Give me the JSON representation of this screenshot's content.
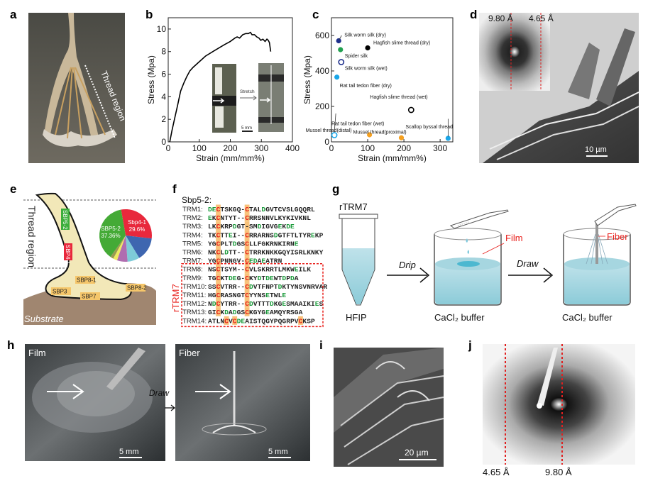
{
  "panel_labels": [
    "a",
    "b",
    "c",
    "d",
    "e",
    "f",
    "g",
    "h",
    "i",
    "j"
  ],
  "panel_a": {
    "thread_region_label": "Thread region"
  },
  "panel_b_inset": {
    "stretch_label": "Stretch",
    "scale_label": "5 mm"
  },
  "panel_d": {
    "label_left": "9.80 Å",
    "label_right": "4.65 Å",
    "scale_label": "10 µm",
    "line_color": "#e02020"
  },
  "panel_e": {
    "thread_region_label": "Thread region",
    "substrate_label": "Substrate",
    "protein_tags": [
      {
        "label": "SBP5-2",
        "color": "#3cae3c"
      },
      {
        "label": "SBP4-1",
        "color": "#e8283c"
      },
      {
        "label": "SBP8-1",
        "color": "#f5c66a"
      },
      {
        "label": "SBP8-2",
        "color": "#f5c66a"
      },
      {
        "label": "SBP3",
        "color": "#f5c66a"
      },
      {
        "label": "SBP7",
        "color": "#f5c66a"
      }
    ],
    "pie": [
      {
        "label": "Sbp4-1",
        "value_label": "29.6%",
        "value": 29.6,
        "color": "#e8283c"
      },
      {
        "label": "",
        "value": 14.5,
        "color": "#3e66b0"
      },
      {
        "label": "",
        "value": 7.5,
        "color": "#7ecbd8"
      },
      {
        "label": "",
        "value": 6.5,
        "color": "#b06db0"
      },
      {
        "label": "",
        "value": 2.5,
        "color": "#eeea60"
      },
      {
        "label": "",
        "value": 2.04,
        "color": "#9a9a50"
      },
      {
        "label": "SBP5-2",
        "value_label": "37.36%",
        "value": 37.36,
        "color": "#44aa36"
      }
    ]
  },
  "panel_f": {
    "title": "Sbp5-2:",
    "group_label": "rTRM7",
    "rows": [
      {
        "name": "TRM1:",
        "seq": "DECTSKGQ-CTALDGVTCVSLGQQRL",
        "hl": [
          2,
          9
        ]
      },
      {
        "name": "TRM2:",
        "seq": "EKCNTYT--CRRSNNVLKYKIVKNL",
        "hl": [
          2,
          9
        ]
      },
      {
        "name": "TRM3:",
        "seq": "LKCKRPDGT-SMDIGVGEKDE",
        "hl": [
          2,
          9
        ]
      },
      {
        "name": "TRM4:",
        "seq": "TKCTTEI--CRRARNSDGTFTLTYREKP",
        "hl": [
          2,
          9
        ]
      },
      {
        "name": "TRM5:",
        "seq": "YGCPLTDGSCLLFGKRNKIRNE",
        "hl": [
          2,
          9
        ]
      },
      {
        "name": "TRM6:",
        "seq": "NKCLDTT--CTRRKNKKGQYISRLKNKY",
        "hl": [
          2,
          9
        ]
      },
      {
        "name": "TRM7:",
        "seq": "YGCPNNGV-CEDAEATRN",
        "hl": [
          2,
          9
        ]
      },
      {
        "name": "TRM8:",
        "seq": "NSCTSYM--CVLSKRRTLMKWEILK",
        "hl": [
          2,
          9
        ]
      },
      {
        "name": "TRM9:",
        "seq": "TGCKTDEG-CKYDTDEWTDPDA",
        "hl": [
          2,
          9
        ]
      },
      {
        "name": "TRM10:",
        "seq": "SSCVTRR--CDVTFNPTDKTYNSVNRVAR",
        "hl": [
          2,
          9
        ]
      },
      {
        "name": "TRM11:",
        "seq": "HGCRASNGTCYYNSETWLE",
        "hl": [
          2,
          9
        ]
      },
      {
        "name": "TRM12:",
        "seq": "NDCYTRR--CDVTTTDKGESMAAIKIES",
        "hl": [
          2,
          9
        ]
      },
      {
        "name": "TRM13:",
        "seq": "GICKDADGSCKGYGEAMQYRSGA",
        "hl": [
          2,
          9
        ]
      },
      {
        "name": "TRM14:",
        "seq": "ATLNCVCDEAISTQGYPQGRPVCKSP",
        "hl": [
          4,
          6,
          22
        ]
      }
    ],
    "colors": {
      "cysteine": "#e8201c",
      "acidic": "#1a9a3a",
      "highlight": "#f8c27a",
      "box": "#e8201c"
    }
  },
  "panel_g": {
    "tube_label": "rTRM7",
    "solvent_label": "HFIP",
    "step1": "Drip",
    "step2": "Draw",
    "film_label": "Film",
    "fiber_label": "Fiber",
    "buffer1": "CaCl₂ buffer",
    "buffer2": "CaCl₂ buffer"
  },
  "panel_h": {
    "left_label": "Film",
    "right_label": "Fiber",
    "arrow_label": "Draw",
    "scale_left": "5 mm",
    "scale_right": "5 mm"
  },
  "panel_i": {
    "scale_label": "20 µm"
  },
  "panel_j": {
    "label_left": "4.65 Å",
    "label_right": "9.80 Å"
  },
  "chart_data": [
    {
      "type": "line",
      "xlabel": "Strain (mm/mm%)",
      "ylabel": "Stress (Mpa)",
      "xlim": [
        0,
        400
      ],
      "ylim": [
        0,
        11
      ],
      "xticks": [
        0,
        100,
        200,
        300,
        400
      ],
      "yticks": [
        0,
        2,
        4,
        6,
        8,
        10
      ],
      "grid": false,
      "x": [
        5,
        12,
        20,
        30,
        40,
        50,
        60,
        70,
        80,
        100,
        120,
        150,
        180,
        200,
        215,
        222,
        230,
        240,
        250,
        258,
        265,
        270,
        278,
        285,
        292,
        298,
        305,
        312,
        318,
        322,
        326,
        330
      ],
      "y": [
        0,
        1,
        2,
        3.2,
        4.5,
        5.2,
        5.8,
        6.3,
        6.6,
        7.1,
        7.6,
        8.1,
        8.6,
        8.9,
        9.2,
        9.3,
        9.2,
        9.5,
        9.6,
        9.6,
        9.7,
        9.5,
        9.5,
        9.3,
        9.2,
        9.0,
        9.1,
        8.9,
        9.1,
        9.0,
        8.8,
        8.0
      ],
      "color": "#000000"
    },
    {
      "type": "scatter",
      "xlabel": "Strain (mm/mm%)",
      "ylabel": "Stress (Mpa)",
      "xlim": [
        0,
        335
      ],
      "ylim": [
        0,
        700
      ],
      "xticks": [
        0,
        100,
        200,
        300
      ],
      "yticks": [
        0,
        200,
        400,
        600
      ],
      "grid": false,
      "points": [
        {
          "label": "Silk worm silk (dry)",
          "x": 20,
          "y": 570,
          "color": "#1e2f8c",
          "filled": true
        },
        {
          "label": "Spider silk",
          "x": 25,
          "y": 520,
          "color": "#22a050",
          "filled": true
        },
        {
          "label": "Hagfish slime thread (dry)",
          "x": 100,
          "y": 530,
          "color": "#000000",
          "filled": true
        },
        {
          "label": "Silk worm silk (wet)",
          "x": 27,
          "y": 450,
          "color": "#1e2f8c",
          "filled": false
        },
        {
          "label": "Rat tail tedon fiber (dry)",
          "x": 15,
          "y": 365,
          "color": "#1aa6e8",
          "filled": true
        },
        {
          "label": "Hagfish slime thread (wet)",
          "x": 220,
          "y": 180,
          "color": "#000000",
          "filled": false
        },
        {
          "label": "Rat tail tedon fiber (wet)",
          "x": 8,
          "y": 38,
          "color": "#1aa6e8",
          "filled": false
        },
        {
          "label": "Mussel thread(distal)",
          "x": 105,
          "y": 40,
          "color": "#f5a020",
          "filled": true
        },
        {
          "label": "Mussel thread(proximal)",
          "x": 193,
          "y": 23,
          "color": "#f5a020",
          "filled": true
        },
        {
          "label": "Scallop byssal thread",
          "x": 322,
          "y": 20,
          "color": "#1aa6e8",
          "filled": true,
          "label_color": "#e8201c"
        }
      ]
    }
  ]
}
